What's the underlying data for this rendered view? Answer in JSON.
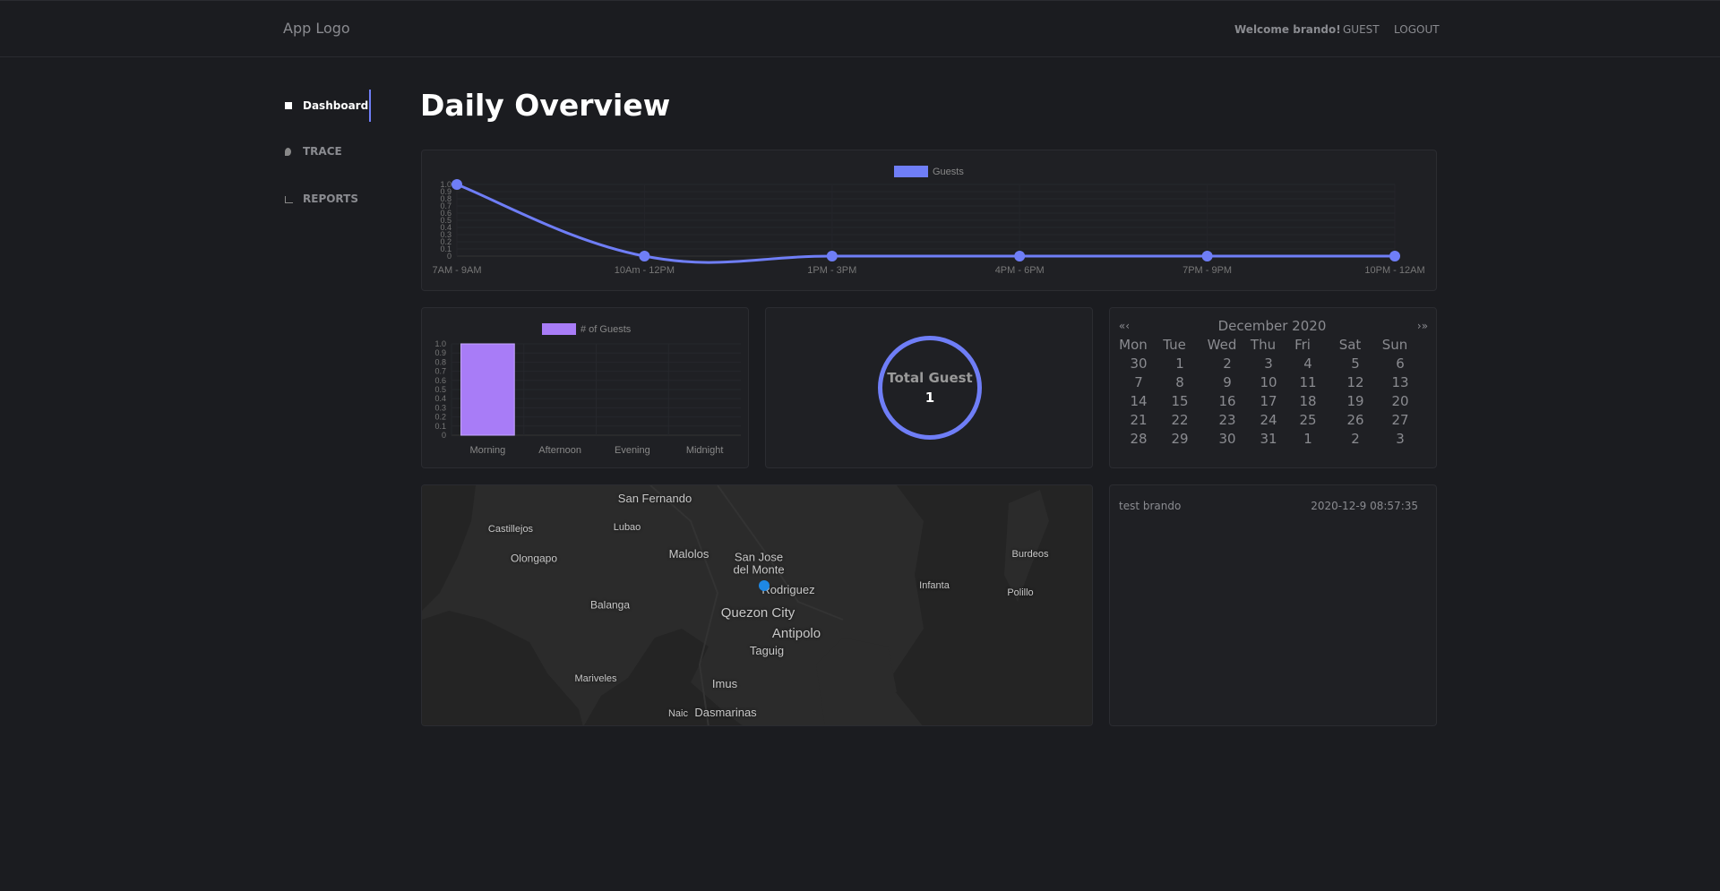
{
  "header": {
    "logo": "App Logo",
    "welcome": "Welcome brando!",
    "links": [
      "GUEST",
      "LOGOUT"
    ]
  },
  "sidebar": {
    "items": [
      "Dashboard",
      "TRACE",
      "REPORTS"
    ]
  },
  "title": "Daily Overview",
  "line_chart": {
    "type": "line",
    "categories": [
      "7AM - 9AM",
      "10Am - 12PM",
      "1PM - 3PM",
      "4PM - 6PM",
      "7PM - 9PM",
      "10PM - 12AM"
    ],
    "series": [
      {
        "name": "Guests",
        "color": "#6f7ef7",
        "values": [
          1,
          0,
          0,
          0,
          0,
          0
        ]
      }
    ],
    "ylim": [
      0,
      1
    ],
    "yticks": [
      0,
      0.1,
      0.2,
      0.3,
      0.4,
      0.5,
      0.6,
      0.7,
      0.8,
      0.9,
      {
        "value": 1,
        "label": "1.0"
      }
    ],
    "grid": true
  },
  "bar_chart": {
    "type": "bar",
    "categories": [
      "Morning",
      "Afternoon",
      "Evening",
      "Midnight"
    ],
    "series": [
      {
        "name": "# of Guests",
        "color": "#a87cf7",
        "values": [
          1,
          0,
          0,
          0
        ]
      }
    ],
    "ylim": [
      0,
      1
    ],
    "yticks": [
      0,
      0.1,
      0.2,
      0.3,
      0.4,
      0.5,
      0.6,
      0.7,
      0.8,
      0.9,
      {
        "value": 1,
        "label": "1.0"
      }
    ],
    "grid": true
  },
  "total_guest": {
    "label": "Total Guest",
    "value": 1
  },
  "calendar": {
    "prev": "«‹",
    "next": "›»",
    "title": "December 2020",
    "weekdays": [
      "Mon",
      "Tue",
      "Wed",
      "Thu",
      "Fri",
      "Sat",
      "Sun"
    ],
    "days": [
      [
        30,
        1,
        2,
        3,
        4,
        5,
        6
      ],
      [
        7,
        8,
        9,
        10,
        11,
        12,
        13
      ],
      [
        14,
        15,
        16,
        17,
        18,
        19,
        20
      ],
      [
        21,
        22,
        23,
        24,
        25,
        26,
        27
      ],
      [
        28,
        29,
        30,
        31,
        1,
        2,
        3
      ]
    ]
  },
  "map": {
    "labels": [
      "San Fernando",
      "Castillejos",
      "Lubao",
      "Olongapo",
      "Malolos",
      "San Jose del Monte",
      "Rodriguez",
      "Balanga",
      "Quezon City",
      "Antipolo",
      "Taguig",
      "Infanta",
      "Burdeos",
      "Polillo",
      "Mariveles",
      "Imus",
      "Naic",
      "Dasmarinas"
    ]
  },
  "log": {
    "name": "test brando",
    "time": "2020-12-9 08:57:35"
  }
}
